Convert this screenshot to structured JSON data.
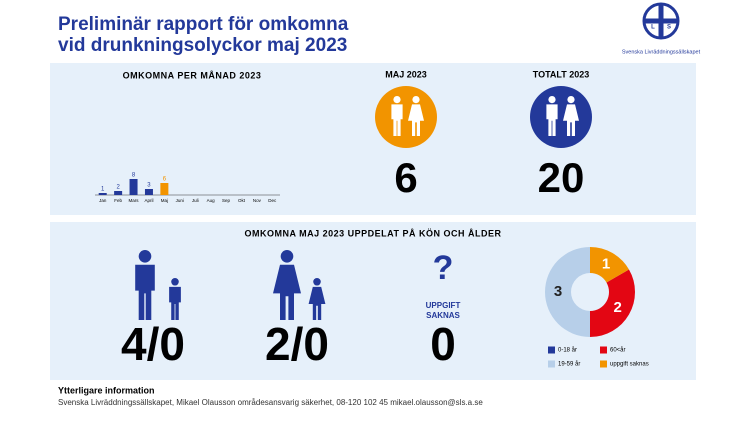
{
  "header": {
    "title_line1": "Preliminär rapport för omkomna",
    "title_line2": "vid drunkningsolyckor maj 2023",
    "logo_text": "Svenska Livräddningssällskapet",
    "logo_letters": [
      "S",
      "L",
      "S"
    ]
  },
  "chart_data": [
    {
      "type": "bar",
      "title": "OMKOMNA PER MÅNAD 2023",
      "categories": [
        "Jan",
        "Feb",
        "Mars",
        "April",
        "Maj",
        "Juni",
        "Juli",
        "Aug",
        "Sep",
        "Okt",
        "Nov",
        "Dec"
      ],
      "values": [
        1,
        2,
        8,
        3,
        6,
        null,
        null,
        null,
        null,
        null,
        null,
        null
      ],
      "colors": [
        "#23399a",
        "#23399a",
        "#23399a",
        "#23399a",
        "#f29400",
        "#23399a",
        "#23399a",
        "#23399a",
        "#23399a",
        "#23399a",
        "#23399a",
        "#23399a"
      ]
    },
    {
      "type": "pie",
      "donut": true,
      "start_angle": 60,
      "categories": [
        "0-18 år",
        "60<år",
        "19-59 år",
        "uppgift saknas"
      ],
      "values": [
        0,
        2,
        3,
        1
      ],
      "colors": [
        "#23399a",
        "#e30613",
        "#b7cfe9",
        "#f29400"
      ]
    }
  ],
  "kpis": [
    {
      "label": "MAJ 2023",
      "value": 6,
      "color": "#f29400"
    },
    {
      "label": "TOTALT 2023",
      "value": 20,
      "color": "#23399a"
    }
  ],
  "breakdown": {
    "title": "OMKOMNA MAJ 2023 UPPDELAT PÅ KÖN OCH ÅLDER",
    "men": "4/0",
    "women": "2/0",
    "question": "?",
    "unknown_label_1": "UPPGIFT",
    "unknown_label_2": "SAKNAS",
    "unknown_value": 0
  },
  "footer": {
    "heading": "Ytterligare information",
    "text": "Svenska Livräddningssällskapet, Mikael Olausson områdesansvarig säkerhet, 08-120 102 45 mikael.olausson@sls.a.se"
  }
}
